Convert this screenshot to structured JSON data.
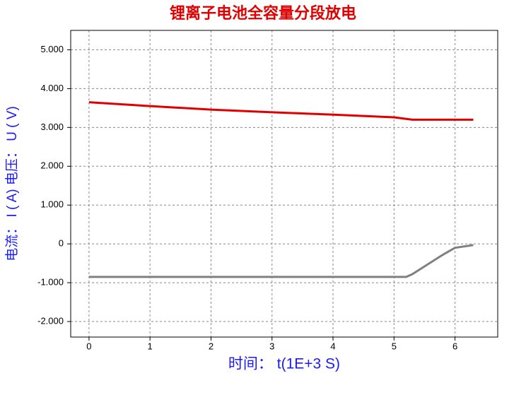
{
  "chart_data": {
    "type": "line",
    "title": "锂离子电池全容量分段放电",
    "x_label": "时间： t(1E+3 S)",
    "y_label": "电流： I ( A)    电压： U ( V)",
    "x": [
      0,
      1,
      2,
      3,
      4,
      5,
      5.2,
      5.3,
      5.5,
      5.8,
      6,
      6.3
    ],
    "series": [
      {
        "color": "#e00000",
        "values": [
          3.65,
          3.55,
          3.46,
          3.39,
          3.33,
          3.26,
          3.22,
          3.2,
          3.2,
          3.2,
          3.2,
          3.2
        ]
      },
      {
        "color": "#808080",
        "values": [
          -0.85,
          -0.85,
          -0.85,
          -0.85,
          -0.85,
          -0.85,
          -0.85,
          -0.78,
          -0.58,
          -0.28,
          -0.1,
          -0.03
        ]
      }
    ],
    "xlim": [
      -0.3,
      6.7
    ],
    "ylim": [
      -2.4,
      5.5
    ],
    "xticks": [
      0,
      1,
      2,
      3,
      4,
      5,
      6
    ],
    "yticks": [
      {
        "value": -2,
        "label": "-2.000"
      },
      {
        "value": -1,
        "label": "-1.000"
      },
      0,
      {
        "value": 1,
        "label": "1.000"
      },
      {
        "value": 2,
        "label": "2.000"
      },
      {
        "value": 3,
        "label": "3.000"
      },
      {
        "value": 4,
        "label": "4.000"
      },
      {
        "value": 5,
        "label": "5.000"
      }
    ],
    "grid": true
  }
}
